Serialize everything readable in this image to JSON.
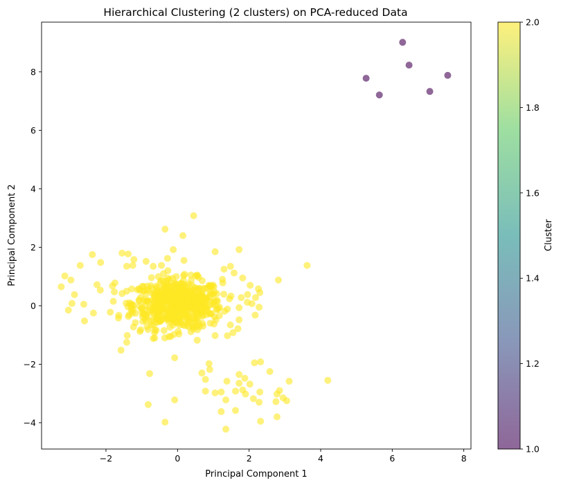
{
  "chart_data": {
    "type": "scatter",
    "title": "Hierarchical Clustering (2 clusters) on PCA-reduced Data",
    "xlabel": "Principal Component 1",
    "ylabel": "Principal Component 2",
    "xlim": [
      -3.8,
      8.2
    ],
    "ylim": [
      -4.9,
      9.7
    ],
    "xticks": [
      -2,
      0,
      2,
      4,
      6,
      8
    ],
    "yticks": [
      -4,
      -2,
      0,
      2,
      4,
      6,
      8
    ],
    "grid": false,
    "colorbar": {
      "label": "Cluster",
      "min": 1.0,
      "max": 2.0,
      "ticks": [
        "1.0",
        "1.2",
        "1.4",
        "1.6",
        "1.8",
        "2.0"
      ],
      "colormap": "viridis"
    },
    "series": [
      {
        "cluster": 1,
        "color": "#440154",
        "points": [
          [
            5.27,
            7.78
          ],
          [
            5.64,
            7.21
          ],
          [
            6.29,
            9.01
          ],
          [
            6.47,
            8.23
          ],
          [
            7.05,
            7.33
          ],
          [
            7.55,
            7.88
          ]
        ]
      },
      {
        "cluster": 2,
        "color": "#fde725",
        "points": [
          [
            0.45,
            3.08
          ],
          [
            -0.35,
            2.62
          ],
          [
            0.15,
            2.4
          ],
          [
            -0.12,
            1.92
          ],
          [
            0.18,
            1.55
          ],
          [
            -0.28,
            1.62
          ],
          [
            -0.45,
            1.38
          ],
          [
            -1.55,
            1.8
          ],
          [
            -1.38,
            1.77
          ],
          [
            -1.22,
            1.58
          ],
          [
            -2.38,
            1.75
          ],
          [
            -2.15,
            1.48
          ],
          [
            -1.42,
            1.35
          ],
          [
            -1.25,
            1.38
          ],
          [
            -0.88,
            1.52
          ],
          [
            -0.68,
            1.35
          ],
          [
            0.55,
            1.05
          ],
          [
            1.05,
            1.85
          ],
          [
            1.72,
            1.92
          ],
          [
            1.48,
            1.35
          ],
          [
            1.3,
            1.25
          ],
          [
            1.58,
            1.12
          ],
          [
            1.82,
            0.95
          ],
          [
            2.03,
            0.7
          ],
          [
            2.26,
            0.58
          ],
          [
            2.3,
            0.45
          ],
          [
            1.78,
            0.28
          ],
          [
            2.18,
            0.28
          ],
          [
            1.95,
            0.12
          ],
          [
            2.08,
            0.07
          ],
          [
            2.28,
            -0.05
          ],
          [
            2.17,
            -0.32
          ],
          [
            1.72,
            -0.48
          ],
          [
            1.55,
            -0.92
          ],
          [
            1.05,
            -1.02
          ],
          [
            0.55,
            -1.18
          ],
          [
            -0.1,
            -0.98
          ],
          [
            -0.68,
            -1.12
          ],
          [
            -1.05,
            -0.88
          ],
          [
            -1.42,
            -1.25
          ],
          [
            -1.58,
            -1.52
          ],
          [
            -2.6,
            -0.52
          ],
          [
            -2.35,
            -0.25
          ],
          [
            -2.88,
            0.38
          ],
          [
            -3.25,
            0.65
          ],
          [
            -3.15,
            1.02
          ],
          [
            -2.98,
            0.88
          ],
          [
            -2.72,
            1.38
          ],
          [
            -3.05,
            -0.15
          ],
          [
            -2.95,
            0.08
          ],
          [
            -2.62,
            0.05
          ],
          [
            -2.25,
            0.72
          ],
          [
            -1.82,
            0.68
          ],
          [
            -1.55,
            0.42
          ],
          [
            -1.88,
            -0.22
          ],
          [
            -1.65,
            -0.42
          ],
          [
            -1.35,
            0.1
          ],
          [
            -1.75,
            0.78
          ],
          [
            2.82,
            0.88
          ],
          [
            3.62,
            1.38
          ],
          [
            4.2,
            -2.55
          ],
          [
            3.12,
            -2.58
          ],
          [
            2.85,
            -2.9
          ],
          [
            2.78,
            -3.02
          ],
          [
            2.95,
            -3.15
          ],
          [
            3.05,
            -3.25
          ],
          [
            2.75,
            -3.28
          ],
          [
            2.3,
            -2.95
          ],
          [
            2.28,
            -3.3
          ],
          [
            2.12,
            -3.18
          ],
          [
            2.02,
            -2.68
          ],
          [
            1.88,
            -2.48
          ],
          [
            1.72,
            -2.35
          ],
          [
            1.72,
            -2.65
          ],
          [
            1.82,
            -2.88
          ],
          [
            1.62,
            -2.92
          ],
          [
            1.9,
            -3.02
          ],
          [
            2.15,
            -1.95
          ],
          [
            2.32,
            -1.92
          ],
          [
            2.58,
            -2.25
          ],
          [
            1.38,
            -2.58
          ],
          [
            1.22,
            -2.95
          ],
          [
            1.35,
            -3.22
          ],
          [
            1.05,
            -2.98
          ],
          [
            1.22,
            -3.62
          ],
          [
            1.62,
            -3.58
          ],
          [
            1.35,
            -4.22
          ],
          [
            2.32,
            -3.95
          ],
          [
            2.78,
            -3.8
          ],
          [
            0.68,
            -2.3
          ],
          [
            0.78,
            -2.52
          ],
          [
            0.88,
            -1.98
          ],
          [
            0.9,
            -2.18
          ],
          [
            0.78,
            -2.92
          ],
          [
            -0.08,
            -1.78
          ],
          [
            -0.08,
            -3.22
          ],
          [
            -0.35,
            -3.98
          ],
          [
            -0.82,
            -3.38
          ],
          [
            -0.78,
            -2.32
          ]
        ],
        "dense_core": {
          "center": [
            0.0,
            0.05
          ],
          "count": 620,
          "x_spread": 0.62,
          "y_spread": 0.42
        }
      }
    ]
  }
}
